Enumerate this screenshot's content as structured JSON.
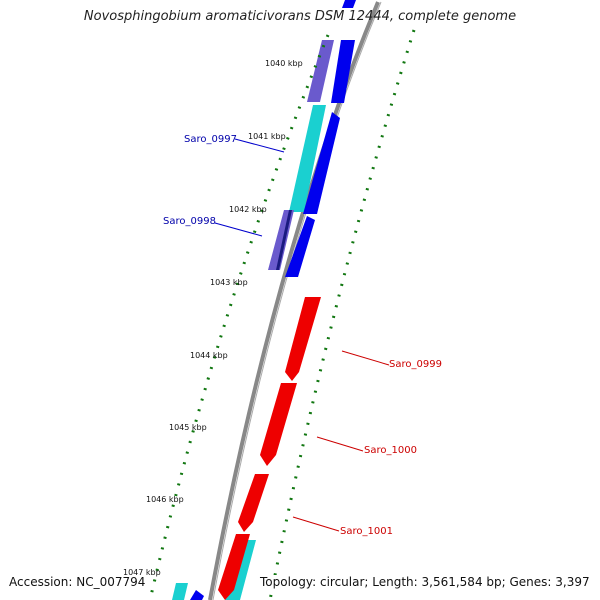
{
  "title": "Novosphingobium aromaticivorans DSM 12444, complete genome",
  "footer": {
    "accession": "Accession: NC_007794",
    "summary": "Topology: circular; Length: 3,561,584 bp; Genes: 3,397"
  },
  "colors": {
    "backbone": "#888888",
    "forward_cds": "#0000ee",
    "cyan_cds": "#1ad0d0",
    "purple_cds": "#6a5acd",
    "reverse_cds": "#ee0000",
    "tick": "#117711",
    "label_forward": "#0000aa",
    "label_reverse": "#cc0000"
  },
  "scale_labels": [
    "1040 kbp",
    "1041 kbp",
    "1042 kbp",
    "1043 kbp",
    "1044 kbp",
    "1045 kbp",
    "1046 kbp",
    "1047 kbp"
  ],
  "gene_labels": [
    {
      "name": "Saro_0997",
      "strand": "forward"
    },
    {
      "name": "Saro_0998",
      "strand": "forward"
    },
    {
      "name": "Saro_0999",
      "strand": "reverse"
    },
    {
      "name": "Saro_1000",
      "strand": "reverse"
    },
    {
      "name": "Saro_1001",
      "strand": "reverse"
    }
  ]
}
